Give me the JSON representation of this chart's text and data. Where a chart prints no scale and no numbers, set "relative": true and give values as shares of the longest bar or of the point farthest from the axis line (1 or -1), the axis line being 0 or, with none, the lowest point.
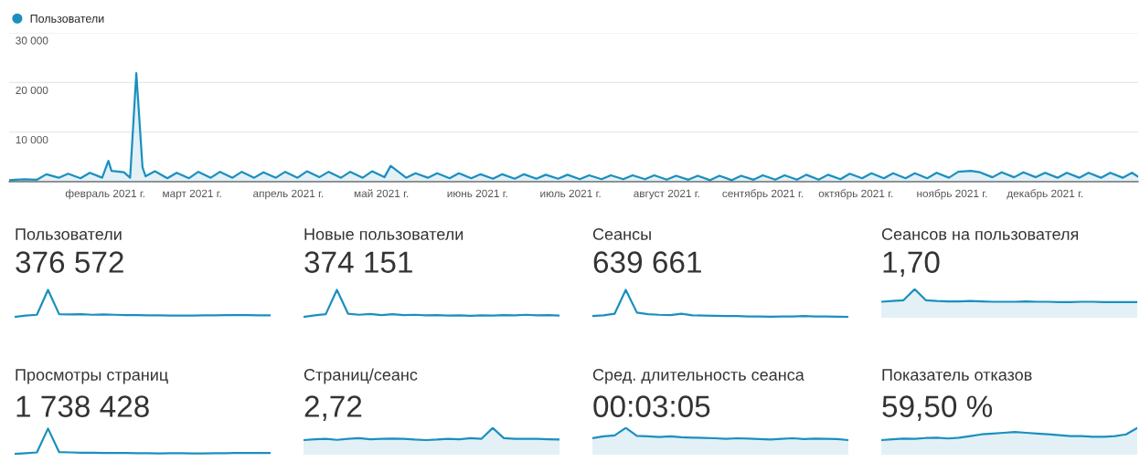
{
  "chart_data": [
    {
      "type": "area",
      "legend": "top left",
      "grid": "y",
      "xlim": [
        "2021-01-01",
        "2021-12-31"
      ],
      "ylim": [
        0,
        30000
      ],
      "xticks": [
        {
          "value": "2021-02-01",
          "label": "февраль 2021 г."
        },
        {
          "value": "2021-03-01",
          "label": "март 2021 г."
        },
        {
          "value": "2021-04-01",
          "label": "апрель 2021 г."
        },
        {
          "value": "2021-05-01",
          "label": "май 2021 г."
        },
        {
          "value": "2021-06-01",
          "label": "июнь 2021 г."
        },
        {
          "value": "2021-07-01",
          "label": "июль 2021 г."
        },
        {
          "value": "2021-08-01",
          "label": "август 2021 г."
        },
        {
          "value": "2021-09-01",
          "label": "сентябрь 2021 г."
        },
        {
          "value": "2021-10-01",
          "label": "октябрь 2021 г."
        },
        {
          "value": "2021-11-01",
          "label": "ноябрь 2021 г."
        },
        {
          "value": "2021-12-01",
          "label": "декабрь 2021 г."
        }
      ],
      "yticks": [
        {
          "value": 0,
          "label": null
        },
        {
          "value": 10000,
          "label": "10 000"
        },
        {
          "value": 20000,
          "label": "20 000"
        },
        {
          "value": 30000,
          "label": "30 000"
        }
      ],
      "x": [
        "2021-01-01",
        "2021-01-03",
        "2021-01-06",
        "2021-01-10",
        "2021-01-13",
        "2021-01-17",
        "2021-01-20",
        "2021-01-24",
        "2021-01-27",
        "2021-01-31",
        "2021-02-02",
        "2021-02-03",
        "2021-02-07",
        "2021-02-09",
        "2021-02-11",
        "2021-02-13",
        "2021-02-14",
        "2021-02-17",
        "2021-02-21",
        "2021-02-24",
        "2021-02-28",
        "2021-03-03",
        "2021-03-07",
        "2021-03-10",
        "2021-03-14",
        "2021-03-17",
        "2021-03-21",
        "2021-03-24",
        "2021-03-28",
        "2021-03-31",
        "2021-04-04",
        "2021-04-07",
        "2021-04-11",
        "2021-04-14",
        "2021-04-18",
        "2021-04-21",
        "2021-04-25",
        "2021-04-28",
        "2021-05-02",
        "2021-05-04",
        "2021-05-09",
        "2021-05-12",
        "2021-05-16",
        "2021-05-19",
        "2021-05-23",
        "2021-05-26",
        "2021-05-30",
        "2021-06-02",
        "2021-06-06",
        "2021-06-09",
        "2021-06-13",
        "2021-06-16",
        "2021-06-20",
        "2021-06-23",
        "2021-06-27",
        "2021-06-30",
        "2021-07-04",
        "2021-07-07",
        "2021-07-11",
        "2021-07-14",
        "2021-07-18",
        "2021-07-21",
        "2021-07-25",
        "2021-07-28",
        "2021-08-01",
        "2021-08-04",
        "2021-08-08",
        "2021-08-11",
        "2021-08-15",
        "2021-08-18",
        "2021-08-22",
        "2021-08-25",
        "2021-08-29",
        "2021-09-01",
        "2021-09-05",
        "2021-09-08",
        "2021-09-12",
        "2021-09-15",
        "2021-09-19",
        "2021-09-22",
        "2021-09-26",
        "2021-09-29",
        "2021-10-03",
        "2021-10-06",
        "2021-10-10",
        "2021-10-13",
        "2021-10-17",
        "2021-10-20",
        "2021-10-24",
        "2021-10-27",
        "2021-10-31",
        "2021-11-03",
        "2021-11-07",
        "2021-11-10",
        "2021-11-14",
        "2021-11-17",
        "2021-11-21",
        "2021-11-24",
        "2021-11-28",
        "2021-12-01",
        "2021-12-05",
        "2021-12-08",
        "2021-12-12",
        "2021-12-15",
        "2021-12-19",
        "2021-12-22",
        "2021-12-26",
        "2021-12-29",
        "2021-12-31"
      ],
      "series": [
        {
          "name": "Пользователи",
          "color": "#1b8fbf",
          "values": [
            300,
            400,
            500,
            400,
            1500,
            800,
            1600,
            700,
            1800,
            800,
            4200,
            2200,
            1900,
            800,
            21900,
            2900,
            1100,
            2100,
            700,
            1800,
            700,
            2000,
            800,
            2000,
            800,
            2000,
            800,
            1900,
            800,
            2000,
            800,
            2100,
            900,
            2000,
            800,
            2000,
            800,
            2100,
            900,
            3200,
            800,
            1700,
            800,
            1700,
            700,
            1700,
            700,
            1500,
            600,
            1500,
            600,
            1500,
            600,
            1400,
            600,
            1400,
            500,
            1300,
            500,
            1300,
            500,
            1300,
            500,
            1300,
            400,
            1200,
            400,
            1200,
            300,
            1200,
            300,
            1200,
            400,
            1300,
            400,
            1300,
            400,
            1400,
            400,
            1400,
            500,
            1600,
            700,
            1700,
            700,
            1700,
            700,
            1700,
            700,
            1800,
            800,
            2000,
            2200,
            1900,
            900,
            1900,
            900,
            1900,
            900,
            1800,
            800,
            1800,
            800,
            1800,
            800,
            1800,
            800,
            1800,
            1000
          ]
        }
      ]
    },
    {
      "type": "line",
      "relative": true,
      "title": "Пользователи",
      "subtitle": "376 572",
      "color": "#1b8fbf",
      "categories": [
        null,
        null,
        null,
        null,
        null,
        null,
        null,
        null,
        null,
        null,
        null,
        null,
        null,
        null,
        null,
        null,
        null,
        null,
        null,
        null,
        null,
        null,
        null,
        null
      ],
      "values": [
        0,
        0.05,
        0.08,
        1,
        0.1,
        0.09,
        0.1,
        0.08,
        0.09,
        0.08,
        0.07,
        0.07,
        0.06,
        0.06,
        0.05,
        0.05,
        0.05,
        0.06,
        0.06,
        0.07,
        0.07,
        0.07,
        0.06,
        0.06
      ]
    },
    {
      "type": "line",
      "relative": true,
      "title": "Новые пользователи",
      "subtitle": "374 151",
      "color": "#1b8fbf",
      "categories": [
        null,
        null,
        null,
        null,
        null,
        null,
        null,
        null,
        null,
        null,
        null,
        null,
        null,
        null,
        null,
        null,
        null,
        null,
        null,
        null,
        null,
        null,
        null,
        null
      ],
      "values": [
        0,
        0.06,
        0.1,
        1,
        0.12,
        0.08,
        0.11,
        0.07,
        0.1,
        0.07,
        0.08,
        0.06,
        0.07,
        0.05,
        0.06,
        0.04,
        0.06,
        0.05,
        0.07,
        0.06,
        0.08,
        0.06,
        0.07,
        0.05
      ]
    },
    {
      "type": "line",
      "relative": true,
      "title": "Сеансы",
      "subtitle": "639 661",
      "color": "#1b8fbf",
      "categories": [
        null,
        null,
        null,
        null,
        null,
        null,
        null,
        null,
        null,
        null,
        null,
        null,
        null,
        null,
        null,
        null,
        null,
        null,
        null,
        null,
        null,
        null,
        null,
        null
      ],
      "values": [
        0.03,
        0.06,
        0.12,
        1,
        0.16,
        0.1,
        0.08,
        0.07,
        0.12,
        0.06,
        0.05,
        0.04,
        0.03,
        0.03,
        0.02,
        0.02,
        0.01,
        0.02,
        0.02,
        0.03,
        0.02,
        0.02,
        0.01,
        0
      ]
    },
    {
      "type": "area",
      "relative": true,
      "title": "Сеансов на пользователя",
      "subtitle": "1,70",
      "color": "#1b8fbf",
      "categories": [
        null,
        null,
        null,
        null,
        null,
        null,
        null,
        null,
        null,
        null,
        null,
        null,
        null,
        null,
        null,
        null,
        null,
        null,
        null,
        null,
        null,
        null,
        null,
        null
      ],
      "values": [
        0.03,
        0.09,
        0.15,
        1,
        0.15,
        0.09,
        0.06,
        0.06,
        0.09,
        0.06,
        0.03,
        0.03,
        0.03,
        0.06,
        0.03,
        0.03,
        0,
        0,
        0.03,
        0.03,
        0,
        0,
        0,
        0
      ]
    },
    {
      "type": "line",
      "relative": true,
      "title": "Просмотры страниц",
      "subtitle": "1 738 428",
      "color": "#1b8fbf",
      "categories": [
        null,
        null,
        null,
        null,
        null,
        null,
        null,
        null,
        null,
        null,
        null,
        null,
        null,
        null,
        null,
        null,
        null,
        null,
        null,
        null,
        null,
        null,
        null,
        null
      ],
      "values": [
        0,
        0.03,
        0.06,
        1,
        0.07,
        0.06,
        0.05,
        0.05,
        0.04,
        0.04,
        0.04,
        0.03,
        0.03,
        0.02,
        0.03,
        0.03,
        0.02,
        0.02,
        0.03,
        0.03,
        0.04,
        0.04,
        0.04,
        0.04
      ]
    },
    {
      "type": "area",
      "relative": true,
      "title": "Страниц/сеанс",
      "subtitle": "2,72",
      "color": "#1b8fbf",
      "categories": [
        null,
        null,
        null,
        null,
        null,
        null,
        null,
        null,
        null,
        null,
        null,
        null,
        null,
        null,
        null,
        null,
        null,
        null,
        null,
        null,
        null,
        null,
        null,
        null
      ],
      "values": [
        0,
        0.07,
        0.11,
        0.02,
        0.11,
        0.16,
        0.07,
        0.11,
        0.13,
        0.11,
        0.04,
        0,
        0.04,
        0.11,
        0.07,
        0.16,
        0.11,
        1,
        0.16,
        0.11,
        0.11,
        0.11,
        0.07,
        0.04
      ]
    },
    {
      "type": "area",
      "relative": true,
      "title": "Сред. длительность сеанса",
      "subtitle": "00:03:05",
      "color": "#1b8fbf",
      "categories": [
        null,
        null,
        null,
        null,
        null,
        null,
        null,
        null,
        null,
        null,
        null,
        null,
        null,
        null,
        null,
        null,
        null,
        null,
        null,
        null,
        null,
        null,
        null,
        null
      ],
      "values": [
        0.15,
        0.31,
        0.38,
        1,
        0.35,
        0.31,
        0.26,
        0.31,
        0.23,
        0.2,
        0.18,
        0.15,
        0.11,
        0.15,
        0.12,
        0.08,
        0.05,
        0.11,
        0.15,
        0.08,
        0.12,
        0.11,
        0.08,
        0
      ]
    },
    {
      "type": "area",
      "relative": true,
      "title": "Показатель отказов",
      "subtitle": "59,50 %",
      "color": "#1b8fbf",
      "categories": [
        null,
        null,
        null,
        null,
        null,
        null,
        null,
        null,
        null,
        null,
        null,
        null,
        null,
        null,
        null,
        null,
        null,
        null,
        null,
        null,
        null,
        null,
        null,
        null
      ],
      "values": [
        0,
        0.07,
        0.13,
        0.1,
        0.17,
        0.2,
        0.13,
        0.2,
        0.33,
        0.47,
        0.53,
        0.6,
        0.67,
        0.6,
        0.53,
        0.47,
        0.4,
        0.33,
        0.33,
        0.27,
        0.27,
        0.33,
        0.47,
        1
      ]
    }
  ]
}
